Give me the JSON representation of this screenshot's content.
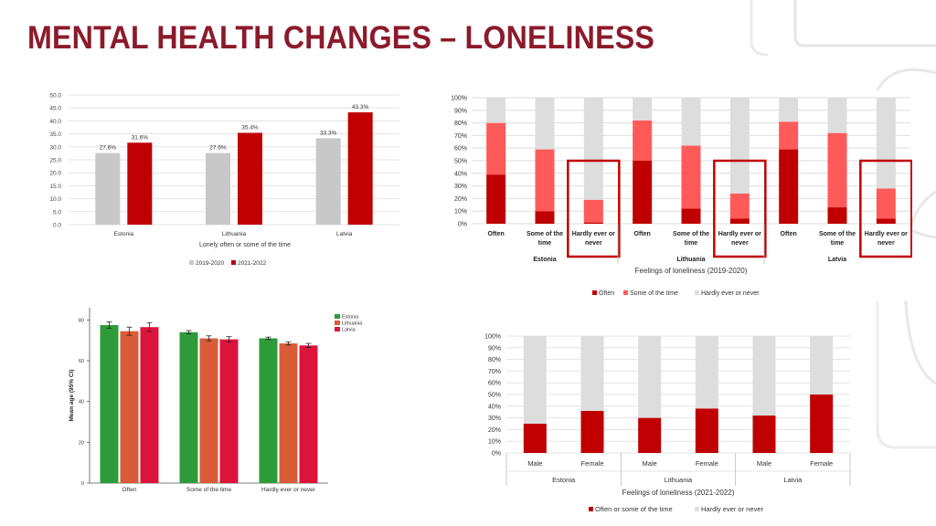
{
  "page_title": "MENTAL HEALTH CHANGES – LONELINESS",
  "colors": {
    "title": "#8b1a2b",
    "grey": "#c8c8c8",
    "dark_red": "#c00000",
    "light_red": "#ff5a5a",
    "very_light_grey": "#dddddd",
    "green": "#2e9b3a",
    "orange": "#d95c38",
    "crimson": "#dc143c"
  },
  "chart_data": [
    {
      "type": "bar",
      "xlabel": "Lonely often or some of the time",
      "categories": [
        "Estonia",
        "Lithuania",
        "Latvia"
      ],
      "ylim": [
        0,
        50
      ],
      "yticks": [
        "0.0",
        "5.0",
        "10.0",
        "15.0",
        "20.0",
        "25.0",
        "30.0",
        "35.0",
        "40.0",
        "45.0",
        "50.0"
      ],
      "series": [
        {
          "name": "2019-2020",
          "values": [
            27.6,
            27.6,
            33.3
          ],
          "labels": [
            "27.6%",
            "27.6%",
            "33.3%"
          ],
          "color": "#c8c8c8"
        },
        {
          "name": "2021-2022",
          "values": [
            31.6,
            35.4,
            43.3
          ],
          "labels": [
            "31.6%",
            "35.4%",
            "43.3%"
          ],
          "color": "#c00000"
        }
      ],
      "legend": "bottom"
    },
    {
      "type": "bar",
      "stacked": true,
      "xlabel": "Feelings of loneliness (2019-2020)",
      "yticks": [
        "0%",
        "10%",
        "20%",
        "30%",
        "40%",
        "50%",
        "60%",
        "70%",
        "80%",
        "90%",
        "100%"
      ],
      "groups": [
        {
          "name": "Estonia",
          "categories": [
            "Often",
            "Some of the time",
            "Hardly ever or never"
          ]
        },
        {
          "name": "Lithuania",
          "categories": [
            "Often",
            "Some of the time",
            "Hardly ever or never"
          ]
        },
        {
          "name": "Latvia",
          "categories": [
            "Often",
            "Some of the time",
            "Hardly ever or never"
          ]
        }
      ],
      "series": [
        {
          "name": "Often",
          "color": "#c00000",
          "values": [
            39,
            10,
            1,
            50,
            12,
            4,
            59,
            13,
            4
          ]
        },
        {
          "name": "Some of the time",
          "color": "#ff5a5a",
          "values": [
            41,
            49,
            18,
            32,
            50,
            20,
            22,
            59,
            24
          ]
        },
        {
          "name": "Hardly ever or never",
          "color": "#dddddd",
          "values": [
            20,
            41,
            81,
            18,
            38,
            76,
            19,
            28,
            72
          ]
        }
      ],
      "highlighted_categories": [
        "Hardly ever or never"
      ],
      "legend": "bottom"
    },
    {
      "type": "bar",
      "ylabel": "Mean age (95% CI)",
      "categories": [
        "Often",
        "Some of the time",
        "Hardly ever or never"
      ],
      "ylim": [
        0,
        80
      ],
      "yticks": [
        "0",
        "20",
        "40",
        "60",
        "80"
      ],
      "series": [
        {
          "name": "Estonia",
          "color": "#2e9b3a",
          "values": [
            77.5,
            74.0,
            71.0
          ],
          "ci": [
            1.5,
            0.8,
            0.6
          ]
        },
        {
          "name": "Lithuania",
          "color": "#d95c38",
          "values": [
            74.5,
            71.0,
            68.5
          ],
          "ci": [
            2.0,
            1.2,
            0.8
          ]
        },
        {
          "name": "Latvia",
          "color": "#dc143c",
          "values": [
            76.5,
            70.5,
            67.5
          ],
          "ci": [
            2.2,
            1.3,
            1.0
          ]
        }
      ],
      "legend": "top-right"
    },
    {
      "type": "bar",
      "stacked": true,
      "xlabel": "Feelings of loneliness (2021-2022)",
      "yticks": [
        "0%",
        "10%",
        "20%",
        "30%",
        "40%",
        "50%",
        "60%",
        "70%",
        "80%",
        "90%",
        "100%"
      ],
      "groups": [
        {
          "name": "Estonia",
          "categories": [
            "Male",
            "Female"
          ]
        },
        {
          "name": "Lithuania",
          "categories": [
            "Male",
            "Female"
          ]
        },
        {
          "name": "Latvia",
          "categories": [
            "Male",
            "Female"
          ]
        }
      ],
      "series": [
        {
          "name": "Often or some of the time",
          "color": "#c00000",
          "values": [
            25,
            36,
            30,
            38,
            32,
            50
          ]
        },
        {
          "name": "Hardly ever or never",
          "color": "#dddddd",
          "values": [
            75,
            64,
            70,
            62,
            68,
            50
          ]
        }
      ],
      "legend": "bottom"
    }
  ]
}
